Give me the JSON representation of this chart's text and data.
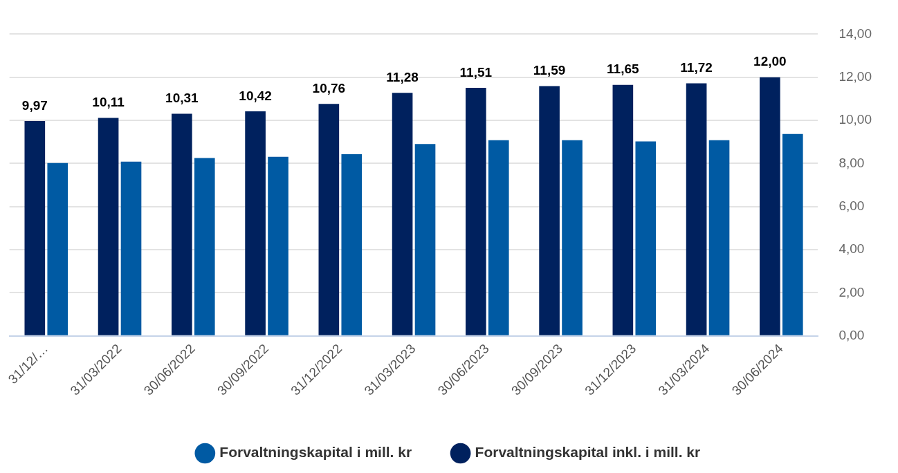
{
  "chart_data": {
    "type": "bar",
    "categories": [
      "31/12/…",
      "31/03/2022",
      "30/06/2022",
      "30/09/2022",
      "31/12/2022",
      "31/03/2023",
      "30/06/2023",
      "30/09/2023",
      "31/12/2023",
      "31/03/2024",
      "30/06/2024"
    ],
    "series": [
      {
        "name": "Forvaltningskapital inkl. i mill. kr",
        "color": "#00215e",
        "values": [
          9.97,
          10.11,
          10.31,
          10.42,
          10.76,
          11.28,
          11.51,
          11.59,
          11.65,
          11.72,
          12.0
        ],
        "value_labels": [
          "9,97",
          "10,11",
          "10,31",
          "10,42",
          "10,76",
          "11,28",
          "11,51",
          "11,59",
          "11,65",
          "11,72",
          "12,00"
        ]
      },
      {
        "name": "Forvaltningskapital i mill. kr",
        "color": "#005aa3",
        "values": [
          8.02,
          8.08,
          8.25,
          8.31,
          8.43,
          8.9,
          9.08,
          9.08,
          9.02,
          9.08,
          9.37
        ]
      }
    ],
    "ylim": [
      0,
      14
    ],
    "yticks": [
      {
        "value": 0,
        "label": "0,00"
      },
      {
        "value": 2,
        "label": "2,00"
      },
      {
        "value": 4,
        "label": "4,00"
      },
      {
        "value": 6,
        "label": "6,00"
      },
      {
        "value": 8,
        "label": "8,00"
      },
      {
        "value": 10,
        "label": "10,00"
      },
      {
        "value": 12,
        "label": "12,00"
      },
      {
        "value": 14,
        "label": "14,00"
      }
    ],
    "grid": "y",
    "legend": "bottom"
  }
}
